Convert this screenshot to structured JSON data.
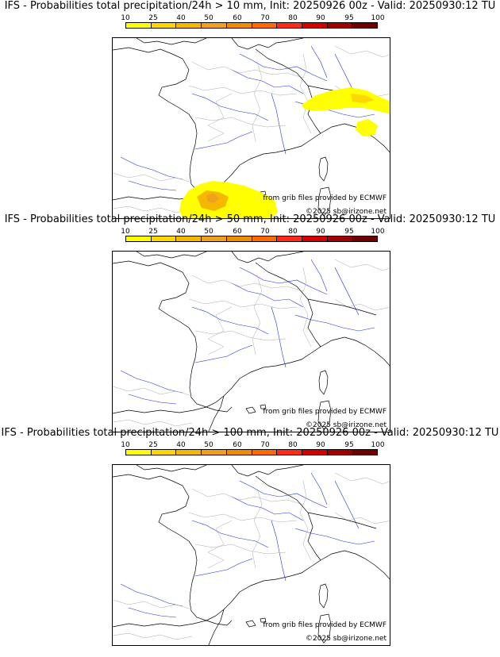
{
  "panels": [
    {
      "title": "IFS - Probabilities total precipitation/24h > 10 mm, Init: 20250926 00z - Valid: 20250930:12 TU",
      "credit": "from grib files provided by ECMWF",
      "copyright": "©2025 sb@irizone.net",
      "has_precip": true
    },
    {
      "title": "IFS - Probabilities total precipitation/24h > 50 mm, Init: 20250926 00z - Valid: 20250930:12 TU",
      "credit": "from grib files provided by ECMWF",
      "copyright": "©2025 sb@irizone.net",
      "has_precip": false
    },
    {
      "title": "IFS - Probabilities total precipitation/24h > 100 mm, Init: 20250926 00z - Valid: 20250930:12 TU",
      "credit": "from grib files provided by ECMWF",
      "copyright": "©2025 sb@irizone.net",
      "has_precip": false
    }
  ],
  "scale": {
    "ticks": [
      "10",
      "25",
      "40",
      "50",
      "60",
      "70",
      "80",
      "90",
      "95",
      "100"
    ],
    "colors": [
      "#ffff00",
      "#ffd700",
      "#f5b800",
      "#f0a020",
      "#f08c00",
      "#ff6a00",
      "#ff2a1a",
      "#d40000",
      "#a00000",
      "#700000"
    ]
  }
}
